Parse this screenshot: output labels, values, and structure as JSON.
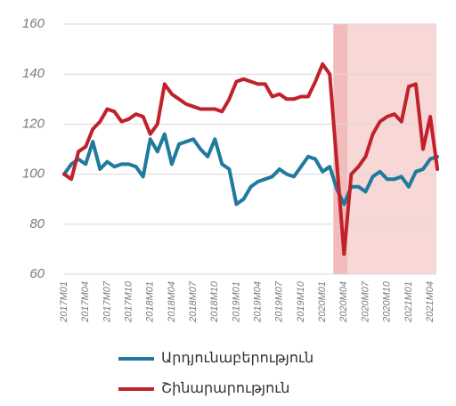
{
  "chart_data": {
    "type": "line",
    "categories": [
      "2017M01",
      null,
      null,
      "2017M04",
      null,
      null,
      "2017M07",
      null,
      null,
      "2017M10",
      null,
      null,
      "2018M01",
      null,
      null,
      "2018M04",
      null,
      null,
      "2018M07",
      null,
      null,
      "2018M10",
      null,
      null,
      "2019M01",
      null,
      null,
      "2019M04",
      null,
      null,
      "2019M07",
      null,
      null,
      "2019M10",
      null,
      null,
      "2020M01",
      null,
      null,
      "2020M04",
      null,
      null,
      "2020M07",
      null,
      null,
      "2020M10",
      null,
      null,
      "2021M01",
      null,
      null,
      "2021M04",
      null
    ],
    "series": [
      {
        "name": "Արդյունաբերություն",
        "color": "#1f7a9e",
        "values": [
          100,
          104,
          106,
          104,
          113,
          102,
          105,
          103,
          104,
          104,
          103,
          99,
          114,
          109,
          116,
          104,
          112,
          113,
          114,
          110,
          107,
          114,
          104,
          102,
          88,
          90,
          95,
          97,
          98,
          99,
          102,
          100,
          99,
          103,
          107,
          106,
          101,
          103,
          94,
          88,
          95,
          95,
          93,
          99,
          101,
          98,
          98,
          99,
          95,
          101,
          102,
          106,
          107
        ]
      },
      {
        "name": "Շինարարություն",
        "color": "#c0222b",
        "values": [
          100,
          98,
          109,
          111,
          118,
          121,
          126,
          125,
          121,
          122,
          124,
          123,
          116,
          120,
          136,
          132,
          130,
          128,
          127,
          126,
          126,
          126,
          125,
          130,
          137,
          138,
          137,
          136,
          136,
          131,
          132,
          130,
          130,
          131,
          131,
          137,
          144,
          140,
          104,
          68,
          100,
          103,
          107,
          116,
          121,
          123,
          124,
          121,
          135,
          136,
          110,
          123,
          102
        ]
      }
    ],
    "ylim": [
      60,
      160
    ],
    "yticks": [
      60,
      80,
      100,
      120,
      140,
      160
    ],
    "grid": true,
    "shaded_ranges": [
      {
        "range": [
          38,
          39
        ],
        "color": "#f3bcbc"
      },
      {
        "range": [
          40,
          52
        ],
        "color": "#f8d7d7"
      }
    ]
  }
}
